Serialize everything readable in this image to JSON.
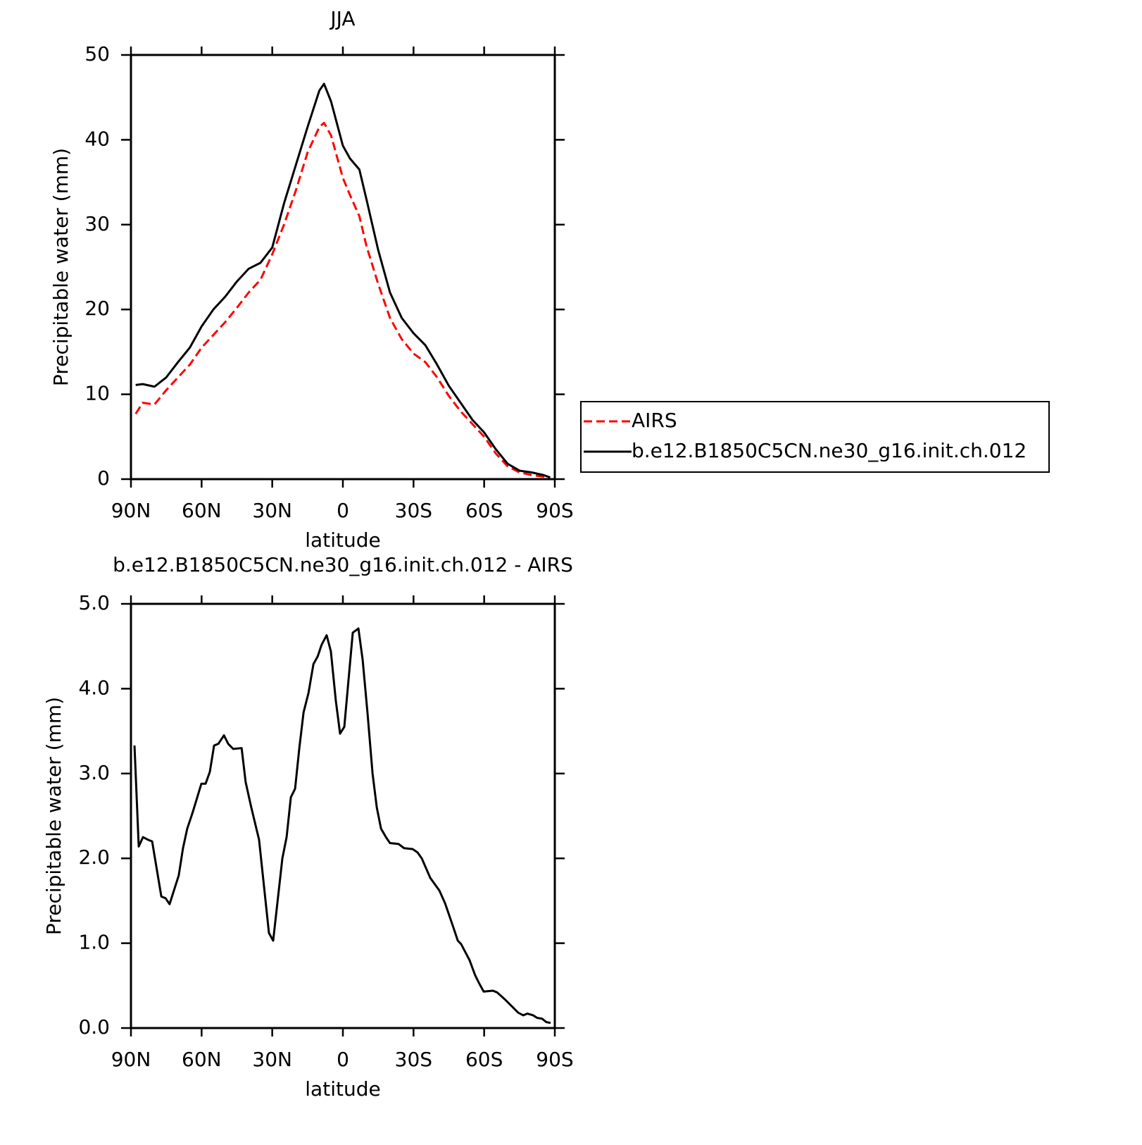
{
  "chart_data": [
    {
      "type": "line",
      "title": "JJA",
      "xlabel": "latitude",
      "ylabel": "Precipitable water (mm)",
      "x": [
        88,
        85,
        80,
        75,
        70,
        65,
        60,
        55,
        50,
        45,
        40,
        35,
        30,
        25,
        20,
        15,
        10,
        8,
        5,
        0,
        -3,
        -7,
        -10,
        -15,
        -20,
        -25,
        -30,
        -35,
        -40,
        -45,
        -50,
        -55,
        -60,
        -65,
        -70,
        -75,
        -80,
        -85,
        -88
      ],
      "series": [
        {
          "name": "AIRS",
          "color": "#ff0000",
          "linestyle": "dashed",
          "values": [
            7.7,
            9.0,
            8.8,
            10.5,
            12.0,
            13.5,
            15.5,
            17.0,
            18.5,
            20.2,
            22.0,
            23.5,
            26.5,
            30.0,
            34.0,
            38.5,
            41.5,
            42.0,
            40.5,
            35.5,
            33.5,
            31.0,
            27.5,
            23.0,
            19.0,
            16.5,
            14.8,
            13.8,
            12.0,
            9.8,
            8.0,
            6.5,
            5.0,
            3.0,
            1.5,
            0.8,
            0.5,
            0.3,
            0.1
          ]
        },
        {
          "name": "b.e12.B1850C5CN.ne30_g16.init.ch.012",
          "color": "#000000",
          "linestyle": "solid",
          "values": [
            11.1,
            11.2,
            10.9,
            12.0,
            13.8,
            15.5,
            18.0,
            20.0,
            21.5,
            23.3,
            24.8,
            25.5,
            27.3,
            32.5,
            37.0,
            41.5,
            45.8,
            46.6,
            44.5,
            39.3,
            37.8,
            36.5,
            33.0,
            27.0,
            22.0,
            19.0,
            17.2,
            15.8,
            13.5,
            11.0,
            9.0,
            7.0,
            5.5,
            3.5,
            1.8,
            1.0,
            0.8,
            0.5,
            0.2
          ]
        }
      ],
      "xlim": [
        90,
        -90
      ],
      "xticks": [
        {
          "value": 90,
          "label": "90N"
        },
        {
          "value": 60,
          "label": "60N"
        },
        {
          "value": 30,
          "label": "30N"
        },
        0,
        {
          "value": -30,
          "label": "30S"
        },
        {
          "value": -60,
          "label": "60S"
        },
        {
          "value": -90,
          "label": "90S"
        }
      ],
      "ylim": [
        0,
        50
      ],
      "yticks": [
        0,
        10,
        20,
        30,
        40,
        50
      ],
      "legend": "right"
    },
    {
      "type": "line",
      "title": "b.e12.B1850C5CN.ne30_g16.init.ch.012 - AIRS",
      "xlabel": "latitude",
      "ylabel": "Precipitable water (mm)",
      "x": [
        88.5,
        86.7,
        84.9,
        82.8,
        81,
        77.1,
        75.3,
        73.6,
        69.7,
        67.9,
        66.1,
        63.7,
        60.1,
        58.3,
        56.5,
        54.7,
        52.9,
        50.5,
        48.7,
        46.6,
        43,
        41.3,
        38.9,
        35.6,
        31.4,
        29.6,
        25.7,
        23.9,
        22.1,
        20.3,
        18.5,
        16.7,
        14.6,
        12.5,
        10.7,
        9,
        6.9,
        5.1,
        3,
        1.2,
        -0.6,
        -4.2,
        -6.6,
        -8.4,
        -10.5,
        -12.6,
        -14.4,
        -16.2,
        -18.3,
        -20,
        -23.6,
        -26,
        -29.6,
        -31.7,
        -33.5,
        -37.1,
        -41,
        -43.4,
        -47,
        -48.8,
        -50.2,
        -53.8,
        -56.2,
        -58,
        -59.8,
        -63.7,
        -65.5,
        -69.1,
        -74.5,
        -76.6,
        -78.4,
        -80.8,
        -82.5,
        -84.6,
        -86.4,
        -88.2
      ],
      "values": [
        3.33,
        2.14,
        2.25,
        2.22,
        2.2,
        1.55,
        1.53,
        1.46,
        1.8,
        2.12,
        2.35,
        2.55,
        2.88,
        2.88,
        3.02,
        3.33,
        3.35,
        3.45,
        3.35,
        3.29,
        3.3,
        2.9,
        2.6,
        2.22,
        1.12,
        1.03,
        2.0,
        2.25,
        2.72,
        2.82,
        3.3,
        3.72,
        3.95,
        4.29,
        4.38,
        4.52,
        4.63,
        4.44,
        3.86,
        3.47,
        3.55,
        4.66,
        4.71,
        4.34,
        3.7,
        3.0,
        2.6,
        2.35,
        2.25,
        2.18,
        2.17,
        2.12,
        2.11,
        2.07,
        2.0,
        1.77,
        1.62,
        1.47,
        1.18,
        1.03,
        0.99,
        0.8,
        0.62,
        0.52,
        0.43,
        0.44,
        0.42,
        0.33,
        0.18,
        0.15,
        0.17,
        0.15,
        0.12,
        0.11,
        0.07,
        0.06
      ],
      "color": "#000000",
      "xlim": [
        90,
        -90
      ],
      "xticks": [
        {
          "value": 90,
          "label": "90N"
        },
        {
          "value": 60,
          "label": "60N"
        },
        {
          "value": 30,
          "label": "30N"
        },
        0,
        {
          "value": -30,
          "label": "30S"
        },
        {
          "value": -60,
          "label": "60S"
        },
        {
          "value": -90,
          "label": "90S"
        }
      ],
      "ylim": [
        0,
        5
      ],
      "yticks": [
        {
          "value": 0,
          "label": "0.0"
        },
        {
          "value": 1,
          "label": "1.0"
        },
        {
          "value": 2,
          "label": "2.0"
        },
        {
          "value": 3,
          "label": "3.0"
        },
        {
          "value": 4,
          "label": "4.0"
        },
        {
          "value": 5,
          "label": "5.0"
        }
      ]
    }
  ]
}
